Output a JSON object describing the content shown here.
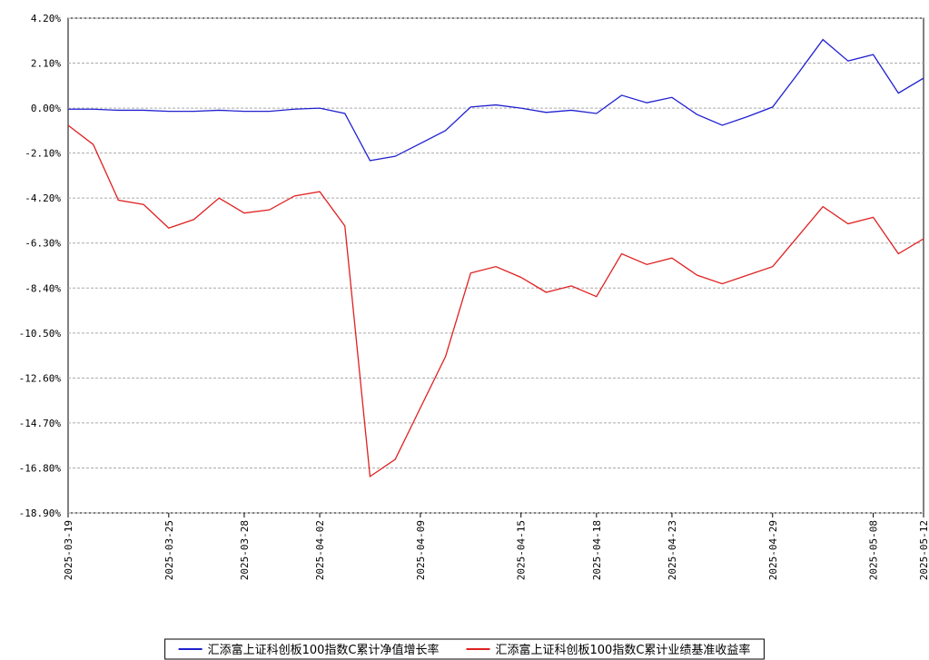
{
  "chart_data": {
    "type": "line",
    "categories": [
      "2025-03-19",
      null,
      null,
      null,
      "2025-03-25",
      null,
      null,
      "2025-03-28",
      null,
      null,
      "2025-04-02",
      null,
      null,
      null,
      "2025-04-09",
      null,
      null,
      null,
      "2025-04-15",
      null,
      null,
      "2025-04-18",
      null,
      null,
      "2025-04-23",
      null,
      null,
      null,
      "2025-04-29",
      null,
      null,
      null,
      "2025-05-08",
      null,
      "2025-05-12"
    ],
    "series": [
      {
        "name": "汇添富上证科创板100指数C累计净值增长率",
        "color": "#2020d0",
        "values": [
          -0.05,
          -0.05,
          -0.1,
          -0.1,
          -0.15,
          -0.15,
          -0.1,
          -0.15,
          -0.15,
          -0.05,
          0.0,
          -0.25,
          -2.45,
          -2.25,
          -1.65,
          -1.05,
          0.05,
          0.15,
          0.0,
          -0.2,
          -0.1,
          -0.25,
          0.6,
          0.25,
          0.5,
          -0.3,
          -0.8,
          -0.4,
          0.05,
          1.6,
          3.2,
          2.2,
          2.5,
          0.7,
          1.4
        ]
      },
      {
        "name": "汇添富上证科创板100指数C累计业绩基准收益率",
        "color": "#e02020",
        "values": [
          -0.8,
          -1.7,
          -4.3,
          -4.5,
          -5.6,
          -5.2,
          -4.2,
          -4.9,
          -4.75,
          -4.1,
          -3.9,
          -5.5,
          -17.2,
          -16.4,
          -14.0,
          -11.6,
          -7.7,
          -7.4,
          -7.9,
          -8.6,
          -8.3,
          -8.8,
          -6.8,
          -7.3,
          -7.0,
          -7.8,
          -8.2,
          -7.8,
          -7.4,
          -6.0,
          -4.6,
          -5.4,
          -5.1,
          -6.8,
          -6.1
        ]
      }
    ],
    "ylim": [
      -18.9,
      4.2
    ],
    "yticks": [
      {
        "value": 4.2,
        "label": "4.20%"
      },
      {
        "value": 2.1,
        "label": "2.10%"
      },
      {
        "value": 0,
        "label": "0.00%"
      },
      {
        "value": -2.1,
        "label": "-2.10%"
      },
      {
        "value": -4.2,
        "label": "-4.20%"
      },
      {
        "value": -6.3,
        "label": "-6.30%"
      },
      {
        "value": -8.4,
        "label": "-8.40%"
      },
      {
        "value": -10.5,
        "label": "-10.50%"
      },
      {
        "value": -12.6,
        "label": "-12.60%"
      },
      {
        "value": -14.7,
        "label": "-14.70%"
      },
      {
        "value": -16.8,
        "label": "-16.80%"
      },
      {
        "value": -18.9,
        "label": "-18.90%"
      }
    ],
    "grid": true,
    "legend": "bottom"
  }
}
